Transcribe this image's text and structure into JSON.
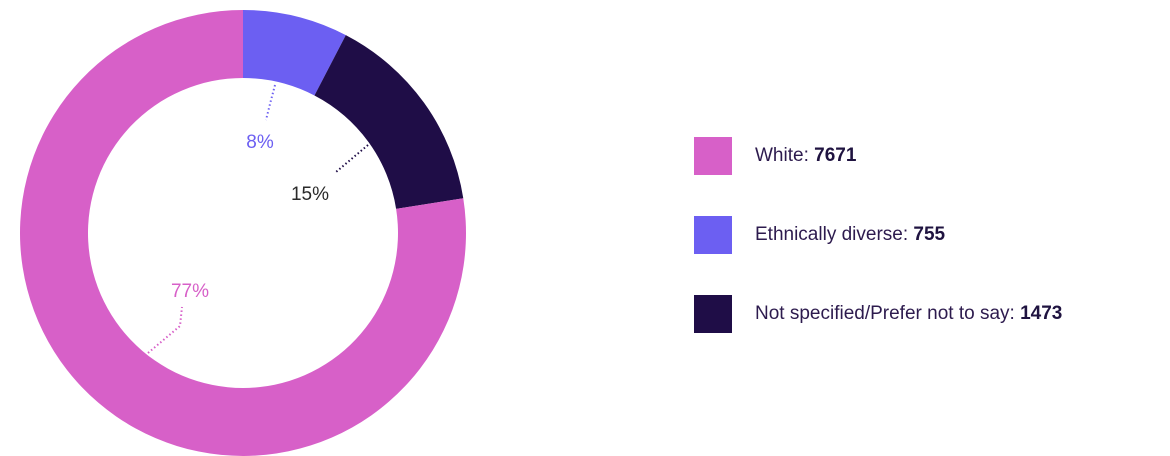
{
  "chart_data": {
    "type": "pie",
    "donut": true,
    "series": [
      {
        "name": "White",
        "value": 7671,
        "percent_label": "77%",
        "color": "#d760c8"
      },
      {
        "name": "Ethnically diverse",
        "value": 755,
        "percent_label": "8%",
        "color": "#6c5ff2"
      },
      {
        "name": "Not specified/Prefer not to say",
        "value": 1473,
        "percent_label": "15%",
        "color": "#1f0d47"
      }
    ],
    "legend_position": "right"
  },
  "legend": {
    "items": [
      {
        "label": "White: ",
        "value": "7671",
        "color": "#d760c8"
      },
      {
        "label": "Ethnically diverse: ",
        "value": "755",
        "color": "#6c5ff2"
      },
      {
        "label": "Not specified/Prefer not to say: ",
        "value": "1473",
        "color": "#1f0d47"
      }
    ]
  },
  "slice_label_colors": [
    "#d760c8",
    "#6c5ff2",
    "#1f0d47"
  ]
}
